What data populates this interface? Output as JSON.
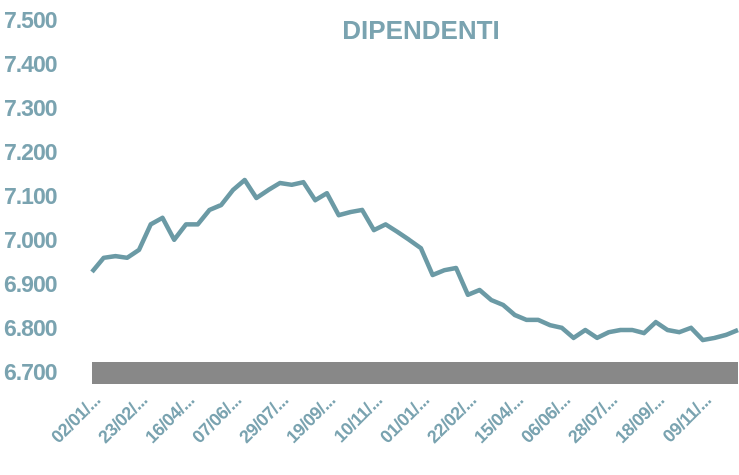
{
  "chart_data": {
    "type": "line",
    "title": "DIPENDENTI",
    "categories": [
      "02/01/...",
      null,
      null,
      null,
      "23/02/...",
      null,
      null,
      null,
      "16/04/...",
      null,
      null,
      null,
      "07/06/...",
      null,
      null,
      null,
      "29/07/...",
      null,
      null,
      null,
      "19/09/...",
      null,
      null,
      null,
      "10/11/...",
      null,
      null,
      null,
      "01/01/...",
      null,
      null,
      null,
      "22/02/...",
      null,
      null,
      null,
      "15/04/...",
      null,
      null,
      null,
      "06/06/...",
      null,
      null,
      null,
      "28/07/...",
      null,
      null,
      null,
      "18/09/...",
      null,
      null,
      null,
      "09/11/...",
      null,
      null,
      null
    ],
    "series": [
      {
        "name": "DIPENDENTI",
        "color": "#6b9aa5",
        "values": [
          6932,
          6964,
          6968,
          6964,
          6982,
          7040,
          7055,
          7005,
          7040,
          7040,
          7073,
          7084,
          7118,
          7141,
          7100,
          7118,
          7134,
          7130,
          7136,
          7095,
          7111,
          7061,
          7068,
          7073,
          7027,
          7040,
          7023,
          7005,
          6986,
          6925,
          6936,
          6941,
          6880,
          6891,
          6868,
          6857,
          6834,
          6823,
          6823,
          6811,
          6805,
          6782,
          6800,
          6782,
          6795,
          6800,
          6800,
          6793,
          6818,
          6800,
          6795,
          6805,
          6777,
          6782,
          6789,
          6800
        ]
      }
    ],
    "ylim": [
      6700,
      7500
    ],
    "yticks": [
      {
        "value": 6700,
        "label": "6.700"
      },
      {
        "value": 6800,
        "label": "6.800"
      },
      {
        "value": 6900,
        "label": "6.900"
      },
      {
        "value": 7000,
        "label": "7.000"
      },
      {
        "value": 7100,
        "label": "7.100"
      },
      {
        "value": 7200,
        "label": "7.200"
      },
      {
        "value": 7300,
        "label": "7.300"
      },
      {
        "value": 7400,
        "label": "7.400"
      },
      {
        "value": 7500,
        "label": "7.500"
      }
    ],
    "grid": false
  }
}
